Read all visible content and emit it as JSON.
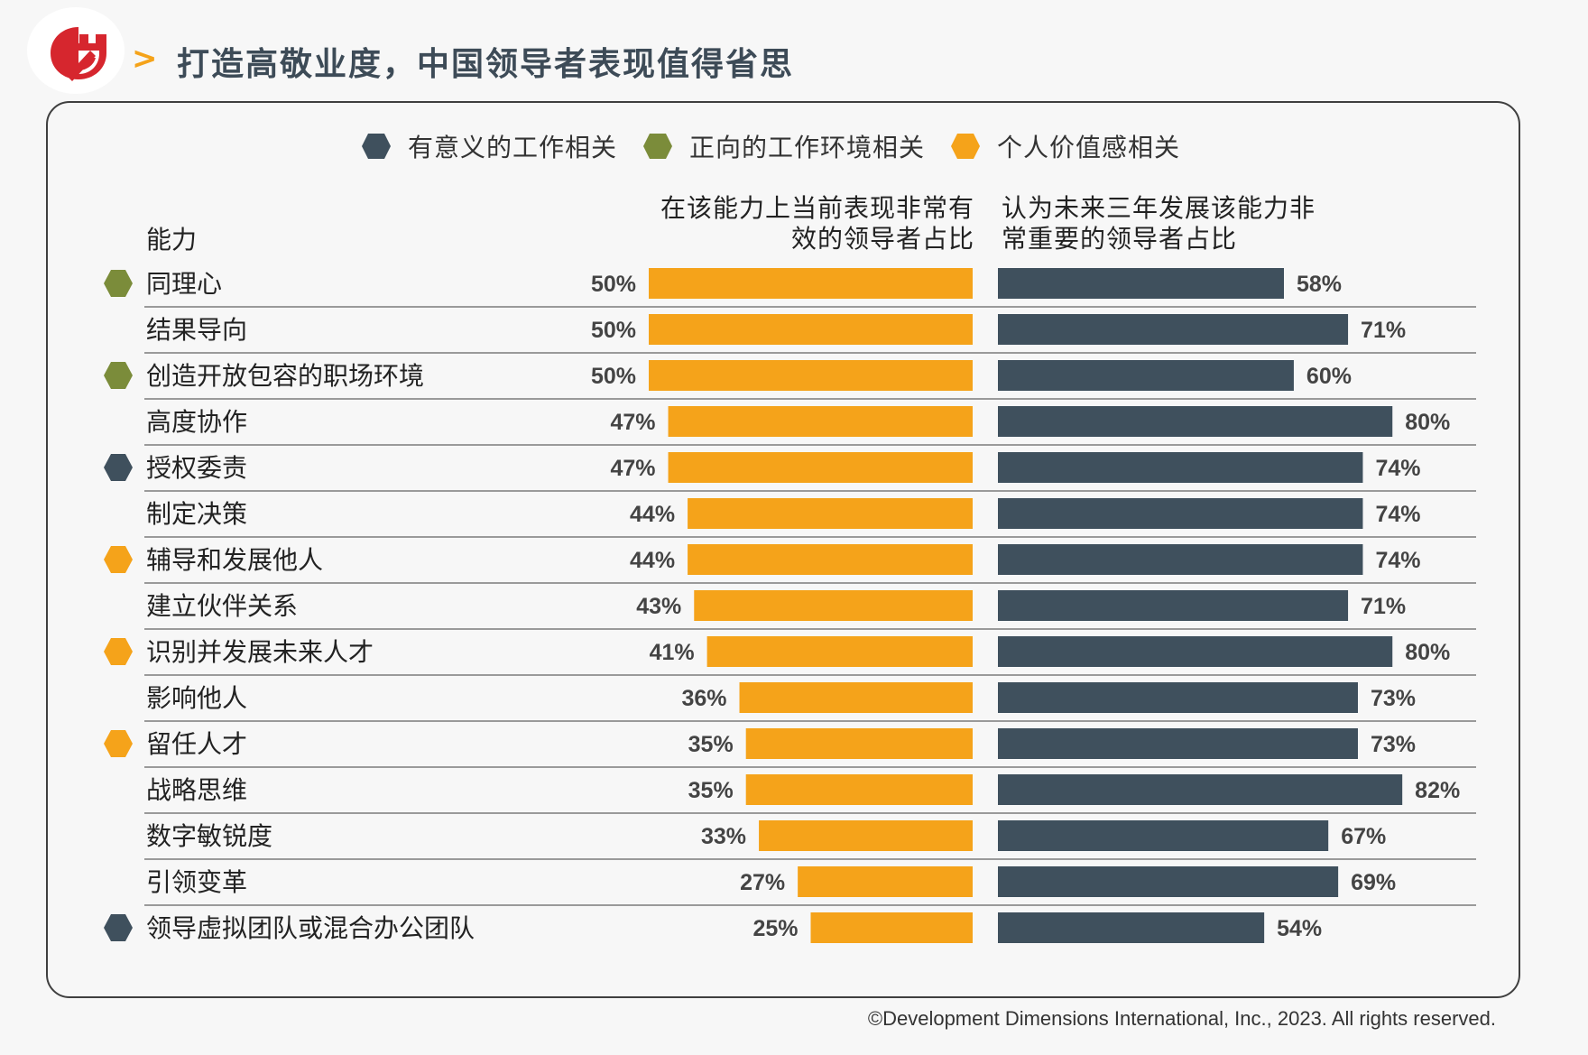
{
  "title": "打造高敬业度，中国领导者表现值得省思",
  "title_arrow": ">",
  "colors": {
    "orange": "#f5a31a",
    "dark": "#3f505d",
    "green": "#7b8c3a",
    "title": "#3d4b57",
    "logo_red": "#d6262e"
  },
  "legend": [
    {
      "label": "有意义的工作相关",
      "color": "#3f505d"
    },
    {
      "label": "正向的工作环境相关",
      "color": "#7b8c3a"
    },
    {
      "label": "个人价值感相关",
      "color": "#f5a31a"
    }
  ],
  "headers": {
    "capability": "能力",
    "left_line1": "在该能力上当前表现非常有",
    "left_line2": "效的领导者占比",
    "right_line1": "认为未来三年发展该能力非",
    "right_line2": "常重要的领导者占比"
  },
  "chart_data": {
    "type": "bar",
    "orientation": "horizontal",
    "categories": [
      "同理心",
      "结果导向",
      "创造开放包容的职场环境",
      "高度协作",
      "授权委责",
      "制定决策",
      "辅导和发展他人",
      "建立伙伴关系",
      "识别并发展未来人才",
      "影响他人",
      "留任人才",
      "战略思维",
      "数字敏锐度",
      "引领变革",
      "领导虚拟团队或混合办公团队"
    ],
    "category_markers": [
      "green",
      null,
      "green",
      null,
      "dark",
      null,
      "orange",
      null,
      "orange",
      null,
      "orange",
      null,
      null,
      null,
      "dark"
    ],
    "series": [
      {
        "name": "在该能力上当前表现非常有效的领导者占比",
        "color": "#f5a31a",
        "values": [
          50,
          50,
          50,
          47,
          47,
          44,
          44,
          43,
          41,
          36,
          35,
          35,
          33,
          27,
          25
        ]
      },
      {
        "name": "认为未来三年发展该能力非常重要的领导者占比",
        "color": "#3f505d",
        "values": [
          58,
          71,
          60,
          80,
          74,
          74,
          74,
          71,
          80,
          73,
          73,
          82,
          67,
          69,
          54
        ]
      }
    ],
    "value_suffix": "%"
  },
  "footer": "©Development Dimensions International, Inc., 2023. All rights reserved."
}
